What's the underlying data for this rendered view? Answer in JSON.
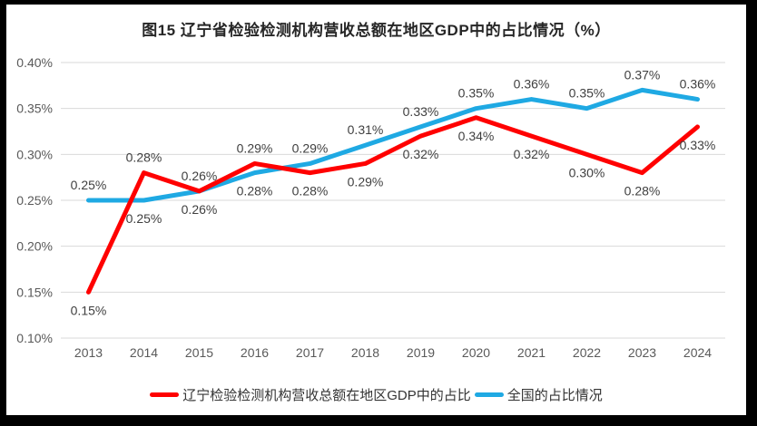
{
  "chart_data": {
    "type": "line",
    "title": "图15 辽宁省检验检测机构营收总额在地区GDP中的占比情况（%）",
    "categories": [
      "2013",
      "2014",
      "2015",
      "2016",
      "2017",
      "2018",
      "2019",
      "2020",
      "2021",
      "2022",
      "2023",
      "2024"
    ],
    "xlabel": "",
    "ylabel": "",
    "y_axis": {
      "min": 0.1,
      "max": 0.4,
      "step": 0.05,
      "tick_labels": [
        "0.40%",
        "0.35%",
        "0.30%",
        "0.25%",
        "0.20%",
        "0.15%",
        "0.10%"
      ],
      "unit": "%"
    },
    "grid": true,
    "legend_position": "bottom",
    "series": [
      {
        "name": "辽宁检验检测机构营收总额在地区GDP中的占比",
        "color": "#FF0000",
        "values": [
          0.15,
          0.28,
          0.26,
          0.29,
          0.28,
          0.29,
          0.32,
          0.34,
          0.32,
          0.3,
          0.28,
          0.33
        ],
        "labels": [
          "0.15%",
          "0.28%",
          "0.26%",
          "0.29%",
          "0.28%",
          "0.29%",
          "0.32%",
          "0.34%",
          "0.32%",
          "0.30%",
          "0.28%",
          "0.33%"
        ],
        "label_placement": [
          "below",
          "above",
          "above",
          "above",
          "below",
          "below",
          "below",
          "below",
          "below",
          "below",
          "below",
          "below"
        ]
      },
      {
        "name": "全国的占比情况",
        "color": "#1FA9E3",
        "values": [
          0.25,
          0.25,
          0.26,
          0.28,
          0.29,
          0.31,
          0.33,
          0.35,
          0.36,
          0.35,
          0.37,
          0.36
        ],
        "labels": [
          "0.25%",
          "0.25%",
          "0.26%",
          "0.28%",
          "0.29%",
          "0.31%",
          "0.33%",
          "0.35%",
          "0.36%",
          "0.35%",
          "0.37%",
          "0.36%"
        ],
        "label_placement": [
          "above",
          "below",
          "below",
          "below",
          "above",
          "above",
          "above",
          "above",
          "above",
          "above",
          "above",
          "above"
        ]
      }
    ],
    "colors": {
      "gridline": "#D9D9D9",
      "tick_text": "#595959",
      "data_label_text": "#3F3F3F",
      "title_text": "#262626",
      "background": "#FFFFFF",
      "frame": "#000000"
    }
  }
}
